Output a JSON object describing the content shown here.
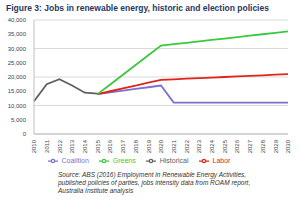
{
  "chart_data": {
    "type": "line",
    "title": "Figure 3: Jobs in renewable energy, historic and election policies",
    "source": "Source: ABS (2016) Employment in Renewable Energy Activities, published policies of parties, jobs intensity data from ROAM report, Australia Institute analysis",
    "categories": [
      "2010",
      "2011",
      "2012",
      "2013",
      "2014",
      "2015",
      "2016",
      "2017",
      "2018",
      "2019",
      "2020",
      "2021",
      "2022",
      "2023",
      "2024",
      "2025",
      "2026",
      "2027",
      "2028",
      "2029",
      "2030"
    ],
    "series": [
      {
        "name": "Coalition",
        "color": "#7b6fd0",
        "values": [
          null,
          null,
          null,
          null,
          null,
          14000,
          14600,
          15200,
          15800,
          16400,
          17000,
          11000,
          11000,
          11000,
          11000,
          11000,
          11000,
          11000,
          11000,
          11000,
          11000
        ]
      },
      {
        "name": "Labor",
        "color": "#e2231a",
        "values": [
          null,
          null,
          null,
          null,
          null,
          14000,
          15000,
          16000,
          17000,
          18000,
          19000,
          19200,
          19400,
          19600,
          19800,
          20000,
          20200,
          20400,
          20600,
          20800,
          21000
        ]
      },
      {
        "name": "Greens",
        "color": "#3cc83c",
        "values": [
          null,
          null,
          null,
          null,
          null,
          14000,
          17400,
          20800,
          24200,
          27600,
          31000,
          31500,
          32000,
          32500,
          33000,
          33500,
          34000,
          34500,
          35000,
          35500,
          36000
        ]
      },
      {
        "name": "Historical",
        "color": "#606060",
        "values": [
          11500,
          17500,
          19200,
          17000,
          14500,
          14200,
          null,
          null,
          null,
          null,
          null,
          null,
          null,
          null,
          null,
          null,
          null,
          null,
          null,
          null,
          null
        ]
      }
    ],
    "ylim": [
      0,
      40000
    ],
    "yticks": [
      0,
      {
        "value": 5000,
        "label": "5,000"
      },
      {
        "value": 10000,
        "label": "10,000"
      },
      {
        "value": 15000,
        "label": "15,000"
      },
      {
        "value": 20000,
        "label": "20,000"
      },
      {
        "value": 25000,
        "label": "25,000"
      },
      {
        "value": 30000,
        "label": "30,000"
      },
      {
        "value": 35000,
        "label": "35,000"
      },
      {
        "value": 40000,
        "label": "40,000"
      }
    ],
    "grid": true,
    "legend": "bottom"
  }
}
